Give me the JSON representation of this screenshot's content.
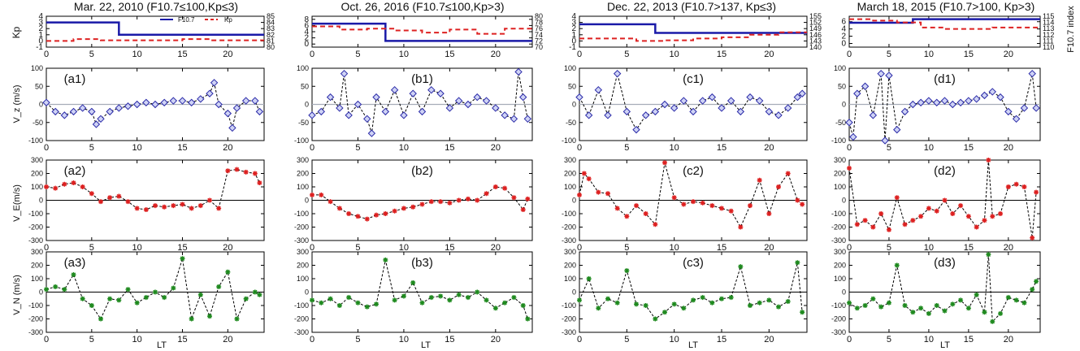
{
  "figure": {
    "ylabels": {
      "kp": "Kp",
      "vz": "V_z (m/s)",
      "ve": "V_E(m/s)",
      "vn": "V_N (m/s)"
    },
    "right_label": "F10.7 index",
    "xlabel": "LT",
    "legend": {
      "f107": "F10.7",
      "kp": "Kp"
    }
  },
  "columns": [
    {
      "title": "Mar. 22, 2010 (F10.7≤100,Kp≤3)",
      "f107_ticks": [
        "80",
        "81",
        "82",
        "83",
        "84",
        "85"
      ],
      "panels": [
        "(a1)",
        "(a2)",
        "(a3)"
      ]
    },
    {
      "title": "Oct. 26, 2016 (F10.7≤100,Kp>3)",
      "f107_ticks": [
        "70",
        "72",
        "74",
        "76",
        "78",
        "80"
      ],
      "panels": [
        "(b1)",
        "(b2)",
        "(b3)"
      ]
    },
    {
      "title": "Dec. 22, 2013 (F10.7>137, Kp≤3)",
      "f107_ticks": [
        "140",
        "143",
        "146",
        "149",
        "152",
        "155"
      ],
      "panels": [
        "(c1)",
        "(c2)",
        "(c3)"
      ]
    },
    {
      "title": "March 18, 2015 (F10.7>100, Kp>3)",
      "f107_ticks": [
        "110",
        "111",
        "112",
        "113",
        "114",
        "115"
      ],
      "panels": [
        "(d1)",
        "(d2)",
        "(d3)"
      ]
    }
  ],
  "chart_data": [
    {
      "type": "line",
      "name": "Kp and F10.7 index",
      "xlabel": "",
      "xlim": [
        0,
        24
      ],
      "xticks": [
        "0",
        "5",
        "10",
        "15",
        "20"
      ],
      "ylabel": "Kp",
      "ylim": [
        -1,
        4
      ],
      "yticks": [
        "-1",
        "0",
        "1",
        "2",
        "3",
        "4"
      ],
      "y2label": "F10.7 index",
      "series": [
        {
          "name": "F10.7 (Mar. 22, 2010)",
          "x": [
            0,
            8,
            8,
            24
          ],
          "kp_scaled": [
            3,
            3,
            1,
            1
          ]
        },
        {
          "name": "Kp (Mar. 22, 2010)",
          "x": [
            0,
            3,
            3,
            6,
            6,
            9,
            9,
            12,
            12,
            15,
            15,
            18,
            18,
            21,
            21,
            24
          ],
          "values": [
            0,
            0,
            0.3,
            0.3,
            0.1,
            0.1,
            0.1,
            0.1,
            0.1,
            0.1,
            0.3,
            0.3,
            0.1,
            0.1,
            0.1,
            0.1
          ]
        },
        {
          "name": "F10.7 (Oct. 26, 2016)",
          "x": [
            0,
            8,
            8,
            24
          ],
          "kp_scaled": [
            6.6,
            6.6,
            1,
            1
          ],
          "ylim": [
            -1,
            9
          ]
        },
        {
          "name": "Kp (Oct. 26, 2016)",
          "x": [
            0,
            3,
            3,
            6,
            6,
            9,
            9,
            12,
            12,
            15,
            15,
            18,
            18,
            21,
            21,
            24
          ],
          "values": [
            5.7,
            5.7,
            4.7,
            4.7,
            5,
            5,
            4.4,
            4.4,
            3.7,
            3.7,
            4.7,
            4.7,
            3.3,
            3.3,
            5,
            5
          ],
          "ylim": [
            -1,
            9
          ]
        },
        {
          "name": "F10.7 (Dec. 22, 2013)",
          "x": [
            0,
            8,
            8,
            24
          ],
          "kp_scaled": [
            2.7,
            2.7,
            1.3,
            1.3
          ]
        },
        {
          "name": "Kp (Dec. 22, 2013)",
          "x": [
            0,
            3,
            3,
            6,
            6,
            9,
            9,
            12,
            12,
            15,
            15,
            18,
            18,
            21,
            21,
            24
          ],
          "values": [
            0.4,
            0.4,
            0.4,
            0.4,
            0,
            0,
            0.1,
            0.1,
            0.4,
            0.4,
            0.6,
            0.6,
            1,
            1,
            1.4,
            1.4
          ]
        },
        {
          "name": "F10.7 (March 18, 2015)",
          "x": [
            0,
            8,
            8,
            24
          ],
          "kp_scaled": [
            5.7,
            5.7,
            6.7,
            6.7
          ],
          "ylim": [
            -1,
            7.5
          ]
        },
        {
          "name": "Kp (March 18, 2015)",
          "x": [
            0,
            3,
            3,
            6,
            6,
            9,
            9,
            12,
            12,
            15,
            15,
            18,
            18,
            21,
            21,
            24
          ],
          "values": [
            6.7,
            6.7,
            6.3,
            6.3,
            5.8,
            5.8,
            4.4,
            4.4,
            4,
            4,
            4,
            4,
            4.4,
            4.4,
            4.4,
            4.4
          ],
          "ylim": [
            -1,
            7.5
          ]
        }
      ]
    },
    {
      "type": "line",
      "name": "V_z vertical drift",
      "ylabel": "V_z (m/s)",
      "ylim": [
        -100,
        100
      ],
      "yticks": [
        "-100",
        "-50",
        "0",
        "50",
        "100"
      ],
      "xticks": [
        "0",
        "5",
        "10",
        "15",
        "20"
      ],
      "series": [
        {
          "name": "(a1)",
          "x": [
            0,
            1,
            2,
            3,
            4,
            5,
            5.5,
            6,
            7,
            8,
            9,
            10,
            11,
            12,
            13,
            14,
            15,
            16,
            17,
            18,
            18.5,
            19,
            20,
            20.5,
            21,
            22,
            23,
            23.5
          ],
          "values": [
            5,
            -20,
            -30,
            -20,
            -10,
            -20,
            -55,
            -40,
            -20,
            -10,
            -5,
            0,
            5,
            0,
            5,
            10,
            10,
            5,
            15,
            30,
            60,
            0,
            -25,
            -65,
            -10,
            10,
            10,
            -20
          ]
        },
        {
          "name": "(b1)",
          "x": [
            0,
            1,
            2,
            3,
            3.5,
            4,
            5,
            6,
            6.5,
            7,
            8,
            9,
            10,
            11,
            12,
            13,
            14,
            15,
            16,
            17,
            18,
            19,
            20,
            21,
            22,
            22.5,
            23,
            23.5
          ],
          "values": [
            -30,
            -20,
            20,
            -10,
            85,
            -30,
            0,
            -40,
            -80,
            20,
            -20,
            40,
            -30,
            30,
            -20,
            40,
            30,
            -10,
            10,
            0,
            20,
            10,
            -10,
            -30,
            -40,
            90,
            20,
            -40
          ]
        },
        {
          "name": "(c1)",
          "x": [
            0,
            1,
            2,
            3,
            4,
            5,
            6,
            7,
            8,
            9,
            10,
            11,
            12,
            13,
            14,
            15,
            16,
            17,
            18,
            19,
            20,
            21,
            22,
            23,
            23.5
          ],
          "values": [
            20,
            -30,
            40,
            -30,
            85,
            -20,
            -70,
            -30,
            -20,
            0,
            -10,
            10,
            -20,
            10,
            20,
            -10,
            10,
            -20,
            20,
            10,
            -20,
            -30,
            -10,
            20,
            30
          ]
        },
        {
          "name": "(d1)",
          "x": [
            0,
            0.5,
            1,
            2,
            3,
            4,
            4.5,
            5,
            6,
            7,
            8,
            9,
            10,
            11,
            12,
            13,
            14,
            15,
            16,
            17,
            18,
            19,
            20,
            21,
            22,
            23,
            23.5
          ],
          "values": [
            -50,
            -90,
            30,
            50,
            -30,
            85,
            -100,
            80,
            -70,
            -20,
            0,
            5,
            10,
            5,
            10,
            0,
            5,
            10,
            15,
            25,
            35,
            20,
            -20,
            -40,
            -10,
            85,
            -10
          ]
        }
      ]
    },
    {
      "type": "line",
      "name": "V_E zonal drift",
      "ylabel": "V_E(m/s)",
      "ylim": [
        -300,
        300
      ],
      "yticks": [
        "-300",
        "-200",
        "-100",
        "0",
        "100",
        "200",
        "300"
      ],
      "xticks": [
        "0",
        "5",
        "10",
        "15",
        "20"
      ],
      "series": [
        {
          "name": "(a2)",
          "x": [
            0,
            1,
            2,
            3,
            4,
            5,
            6,
            7,
            8,
            9,
            10,
            11,
            12,
            13,
            14,
            15,
            16,
            17,
            18,
            19,
            20,
            21,
            22,
            23,
            23.5
          ],
          "values": [
            100,
            90,
            120,
            130,
            100,
            50,
            -10,
            20,
            30,
            -10,
            -60,
            -70,
            -40,
            -50,
            -40,
            -30,
            -60,
            -40,
            0,
            -60,
            220,
            230,
            210,
            200,
            130
          ]
        },
        {
          "name": "(b2)",
          "x": [
            0,
            1,
            2,
            3,
            4,
            5,
            6,
            7,
            8,
            9,
            10,
            11,
            12,
            13,
            14,
            15,
            16,
            17,
            18,
            19,
            20,
            21,
            22,
            23,
            23.5
          ],
          "values": [
            40,
            40,
            -10,
            -60,
            -100,
            -120,
            -140,
            -110,
            -100,
            -80,
            -60,
            -50,
            -30,
            -10,
            -10,
            -20,
            0,
            10,
            0,
            50,
            100,
            90,
            20,
            -70,
            10
          ]
        },
        {
          "name": "(c2)",
          "x": [
            0,
            0.5,
            1,
            2,
            3,
            4,
            5,
            6,
            7,
            8,
            9,
            10,
            11,
            12,
            13,
            14,
            15,
            16,
            17,
            18,
            19,
            20,
            21,
            22,
            23,
            23.5
          ],
          "values": [
            40,
            200,
            160,
            60,
            50,
            -60,
            -120,
            -40,
            -100,
            -180,
            280,
            20,
            -30,
            -10,
            -20,
            -40,
            -60,
            -80,
            -200,
            -40,
            150,
            -100,
            100,
            200,
            0,
            -30
          ]
        },
        {
          "name": "(d2)",
          "x": [
            0,
            1,
            2,
            3,
            4,
            5,
            6,
            7,
            8,
            9,
            10,
            11,
            12,
            13,
            14,
            15,
            16,
            17,
            17.5,
            18,
            19,
            20,
            21,
            22,
            23,
            23.5
          ],
          "values": [
            240,
            -180,
            -150,
            -200,
            -100,
            -220,
            20,
            -180,
            -150,
            -120,
            -60,
            -80,
            0,
            -100,
            -40,
            -120,
            -200,
            -150,
            300,
            -120,
            -100,
            100,
            120,
            100,
            -280,
            60
          ]
        }
      ]
    },
    {
      "type": "line",
      "name": "V_N meridional drift",
      "ylabel": "V_N (m/s)",
      "ylim": [
        -300,
        300
      ],
      "yticks": [
        "-300",
        "-200",
        "-100",
        "0",
        "100",
        "200",
        "300"
      ],
      "xlabel": "LT",
      "xticks": [
        "0",
        "5",
        "10",
        "15",
        "20"
      ],
      "series": [
        {
          "name": "(a3)",
          "x": [
            0,
            1,
            2,
            3,
            4,
            5,
            6,
            7,
            8,
            9,
            10,
            11,
            12,
            13,
            14,
            15,
            16,
            17,
            18,
            19,
            20,
            21,
            22,
            23,
            23.5
          ],
          "values": [
            20,
            40,
            20,
            130,
            -50,
            -100,
            -200,
            -50,
            -60,
            20,
            -80,
            -40,
            0,
            -40,
            30,
            250,
            -200,
            -20,
            -180,
            40,
            150,
            -200,
            -50,
            0,
            -20
          ]
        },
        {
          "name": "(b3)",
          "x": [
            0,
            1,
            2,
            3,
            4,
            5,
            6,
            7,
            8,
            9,
            10,
            11,
            12,
            13,
            14,
            15,
            16,
            17,
            18,
            19,
            20,
            21,
            22,
            23,
            23.5
          ],
          "values": [
            -60,
            -80,
            -50,
            -100,
            -40,
            -80,
            -110,
            -90,
            240,
            -60,
            -30,
            70,
            -80,
            -40,
            -30,
            -60,
            -20,
            -40,
            0,
            -60,
            -120,
            -80,
            -40,
            -100,
            -200
          ]
        },
        {
          "name": "(c3)",
          "x": [
            0,
            1,
            2,
            3,
            4,
            5,
            6,
            7,
            8,
            9,
            10,
            11,
            12,
            13,
            14,
            15,
            16,
            17,
            18,
            19,
            20,
            21,
            22,
            23,
            23.5
          ],
          "values": [
            -60,
            100,
            -120,
            -50,
            -80,
            160,
            -90,
            -100,
            -200,
            -150,
            -90,
            -120,
            -60,
            -40,
            -80,
            -50,
            -40,
            190,
            -100,
            -80,
            -60,
            -110,
            -70,
            220,
            -150
          ]
        },
        {
          "name": "(d3)",
          "x": [
            0,
            1,
            2,
            3,
            4,
            5,
            6,
            7,
            8,
            9,
            10,
            11,
            12,
            13,
            14,
            15,
            16,
            17,
            17.5,
            18,
            19,
            20,
            21,
            22,
            23,
            23.5
          ],
          "values": [
            -80,
            -120,
            -100,
            -50,
            -110,
            -80,
            200,
            -100,
            -150,
            -120,
            -160,
            -100,
            -140,
            -90,
            -60,
            -120,
            -20,
            -150,
            280,
            -220,
            -160,
            -40,
            -60,
            -80,
            20,
            80
          ]
        }
      ]
    }
  ]
}
